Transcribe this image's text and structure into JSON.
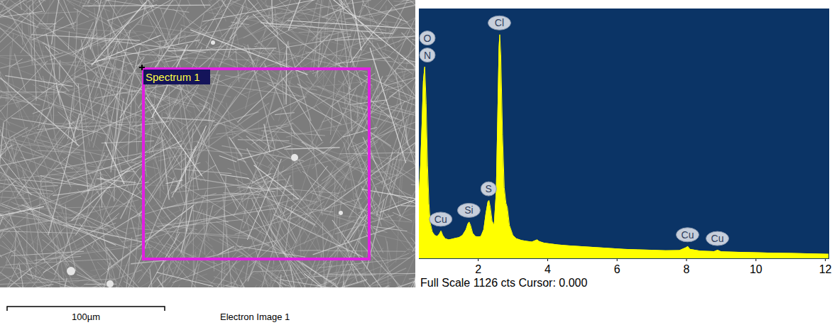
{
  "chart_data": {
    "type": "area",
    "x": [
      0.3,
      0.34,
      0.38,
      0.42,
      0.46,
      0.5,
      0.54,
      0.58,
      0.62,
      0.68,
      0.75,
      0.82,
      0.88,
      0.93,
      0.98,
      1.05,
      1.15,
      1.25,
      1.35,
      1.45,
      1.55,
      1.65,
      1.7,
      1.74,
      1.78,
      1.84,
      1.92,
      2.0,
      2.08,
      2.16,
      2.22,
      2.28,
      2.31,
      2.35,
      2.4,
      2.46,
      2.52,
      2.56,
      2.6,
      2.62,
      2.65,
      2.7,
      2.75,
      2.8,
      2.84,
      2.9,
      3.0,
      3.1,
      3.25,
      3.4,
      3.55,
      3.7,
      3.75,
      3.9,
      4.1,
      4.3,
      4.6,
      5.0,
      5.4,
      5.8,
      6.2,
      6.6,
      7.0,
      7.4,
      7.8,
      8.0,
      8.04,
      8.1,
      8.4,
      8.8,
      8.9,
      9.0,
      9.5,
      10.0,
      10.5,
      11.0,
      11.5,
      12.1
    ],
    "values": [
      300,
      420,
      600,
      800,
      865,
      700,
      420,
      250,
      160,
      120,
      105,
      100,
      110,
      125,
      105,
      90,
      85,
      88,
      92,
      95,
      105,
      130,
      155,
      165,
      150,
      115,
      100,
      98,
      100,
      130,
      200,
      255,
      262,
      230,
      170,
      150,
      300,
      620,
      950,
      1010,
      920,
      560,
      320,
      250,
      230,
      150,
      105,
      90,
      82,
      78,
      75,
      85,
      78,
      70,
      66,
      62,
      58,
      54,
      50,
      46,
      42,
      40,
      38,
      36,
      37,
      50,
      55,
      42,
      34,
      32,
      38,
      31,
      29,
      27,
      25,
      24,
      22,
      20
    ],
    "color": "#ffff00",
    "xlim": [
      0.3,
      12.1
    ],
    "xticks": [
      2,
      4,
      6,
      8,
      10,
      12
    ],
    "ylim": [
      0,
      1126
    ],
    "tick_labels": "x",
    "peak_labels": [
      {
        "label": "N",
        "x": 0.39
      },
      {
        "label": "O",
        "x": 0.52
      },
      {
        "label": "Cl",
        "x": 2.62
      },
      {
        "label": "S",
        "x": 2.31
      },
      {
        "label": "Si",
        "x": 1.74
      },
      {
        "label": "Cu",
        "x": 0.93
      },
      {
        "label": "Cu",
        "x": 8.04
      },
      {
        "label": "Cu",
        "x": 8.9
      }
    ],
    "footer": "Full Scale 1126 cts Cursor: 0.000"
  },
  "image": {
    "region_label": "Spectrum 1",
    "scale_bar": "100µm",
    "caption": "Electron Image 1"
  }
}
